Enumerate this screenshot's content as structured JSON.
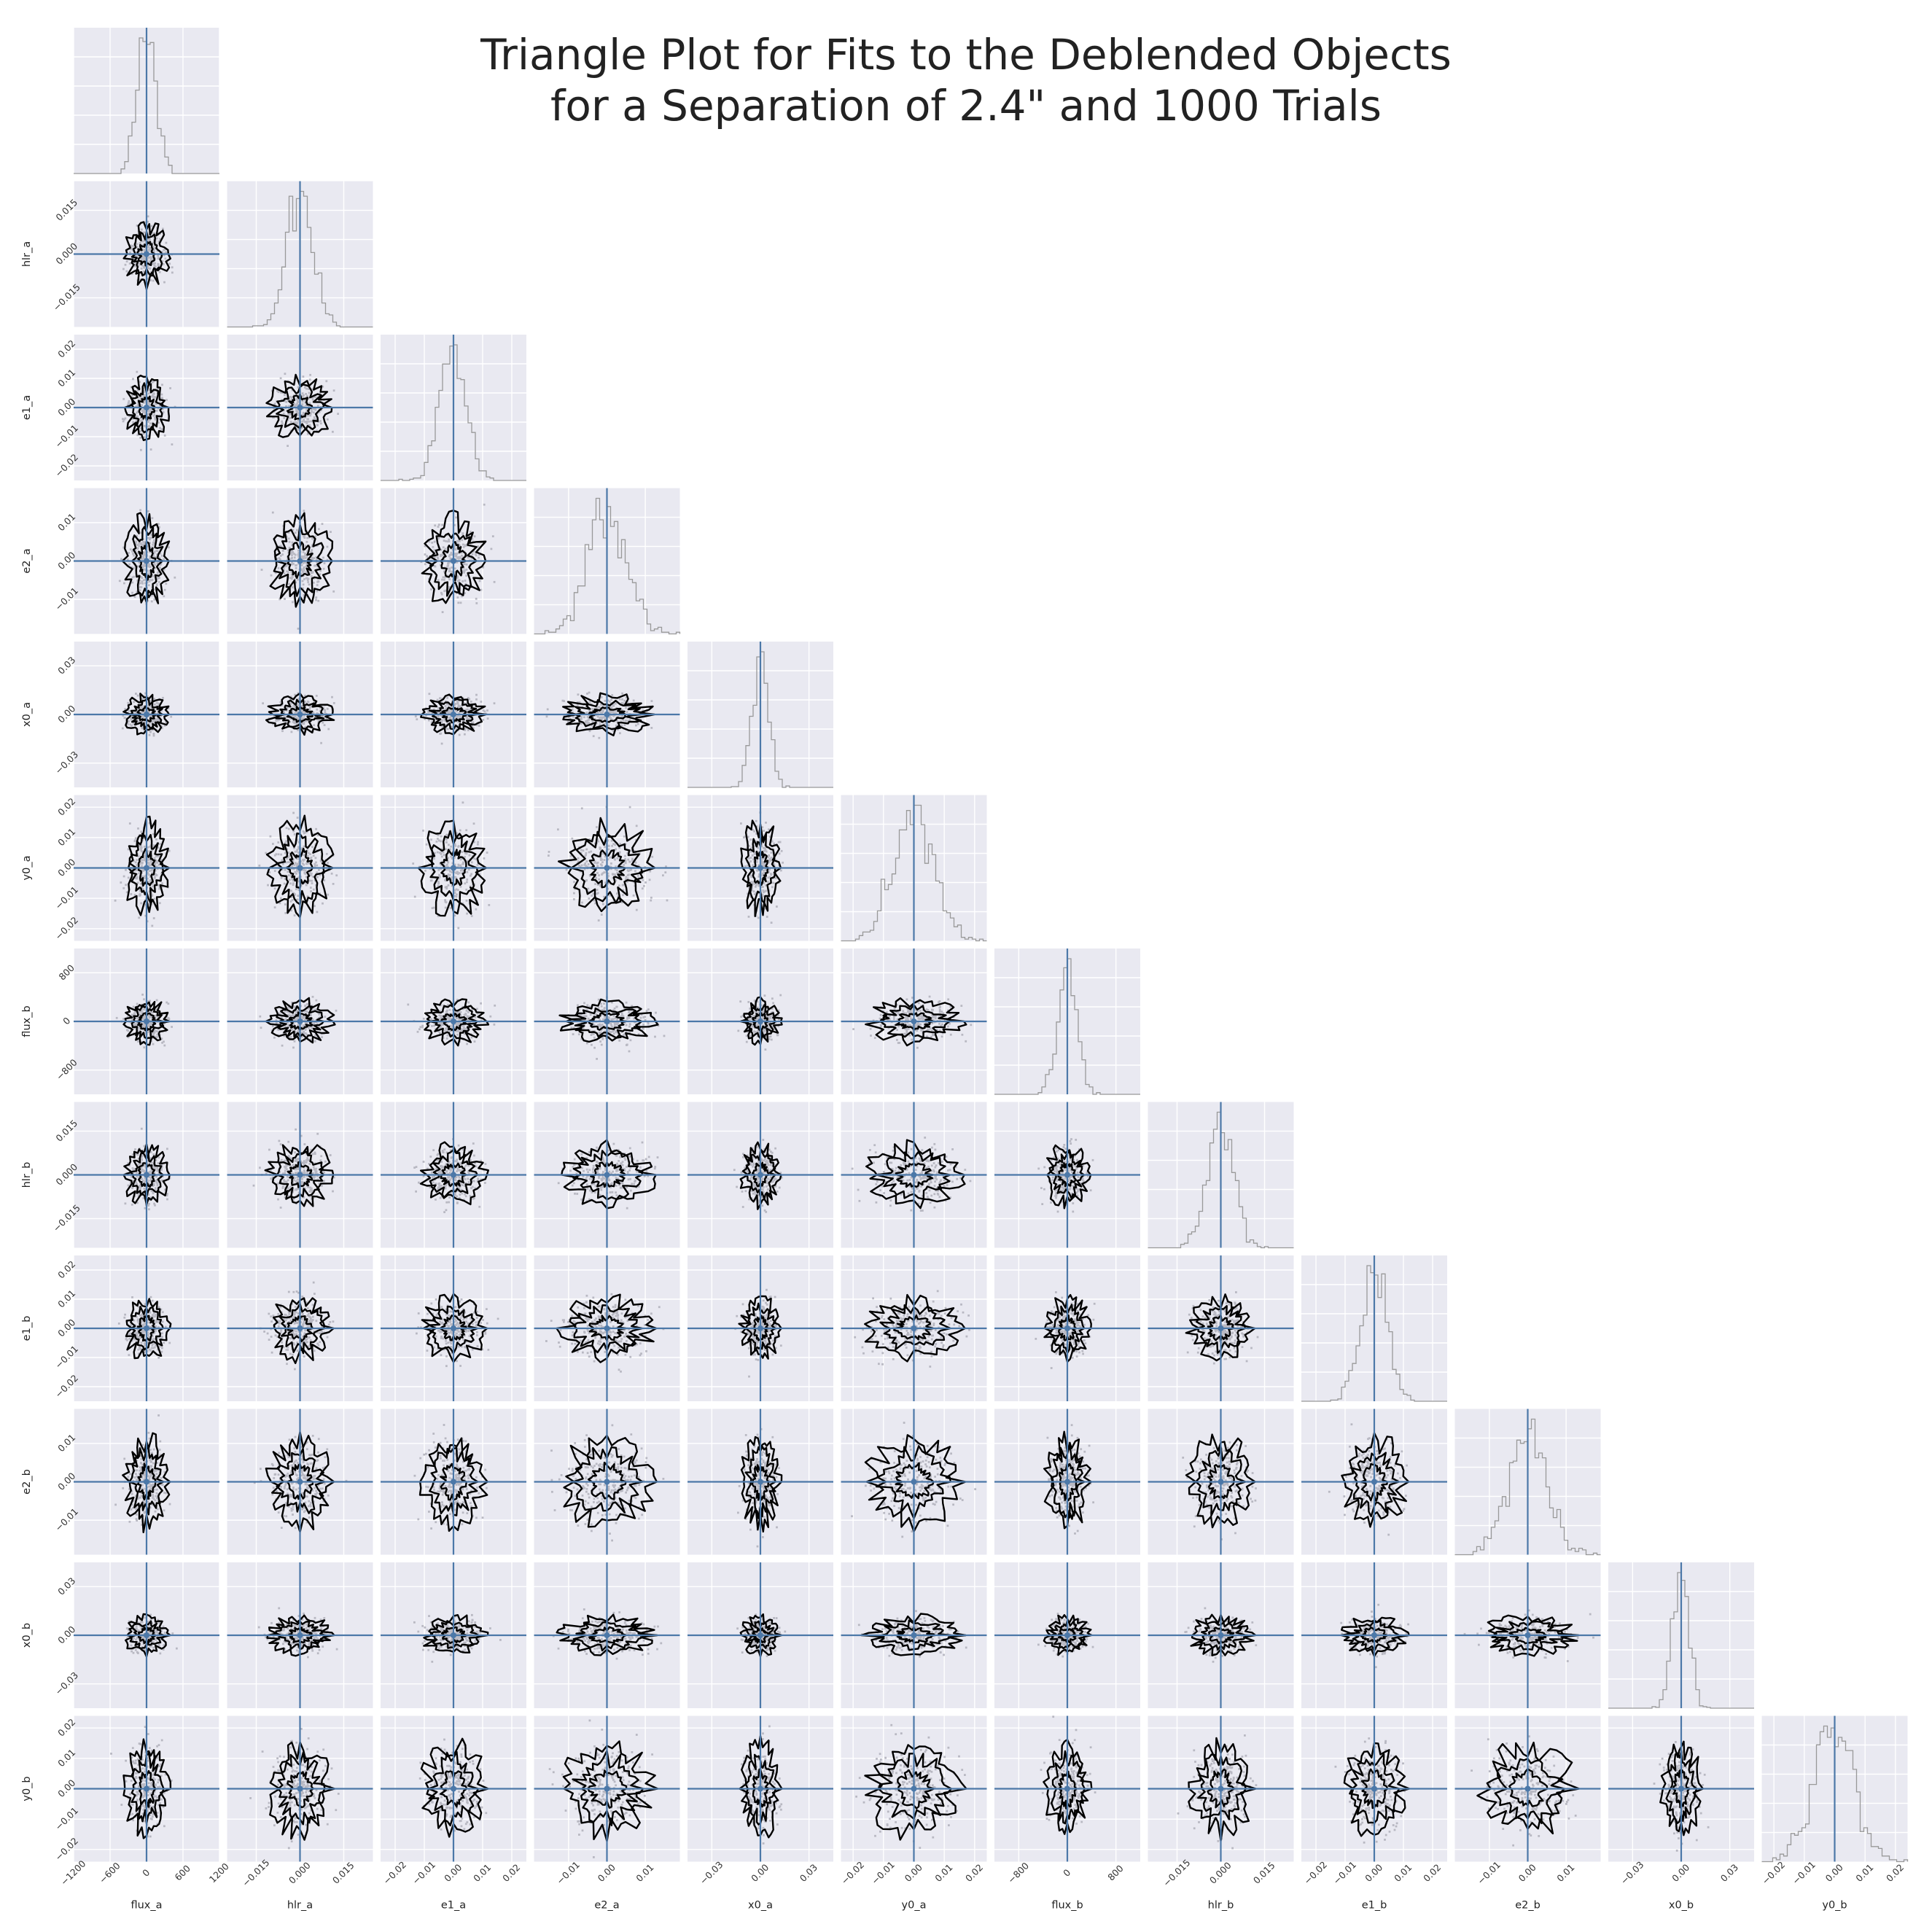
{
  "title": "Triangle Plot for Fits to the Deblended Objects\nfor a Separation of 2.4\" and 1000 Trials",
  "colors": {
    "panel_bg": "#e9e9f1",
    "grid": "#ffffff",
    "truth_line": "#4c78a8",
    "contour": "#000000",
    "scatter_points": "#b8b8c2",
    "histogram": "#999999"
  },
  "chart_data": {
    "type": "corner",
    "trials": 1000,
    "separation_arcsec": 2.4,
    "parameters": [
      {
        "name": "flux_a",
        "label": "flux_a",
        "truth": 0,
        "range": [
          -1200,
          1200
        ],
        "ticks": [
          -1200,
          -600,
          0,
          600,
          1200
        ],
        "tick_labels": [
          "−1200",
          "−600",
          "0",
          "600",
          "1200"
        ],
        "sigma": 150
      },
      {
        "name": "hlr_a",
        "label": "hlr_a",
        "truth": 0,
        "range": [
          -0.025,
          0.025
        ],
        "ticks": [
          -0.015,
          0.0,
          0.015
        ],
        "tick_labels": [
          "−0.015",
          "0.000",
          "0.015"
        ],
        "sigma": 0.0045
      },
      {
        "name": "e1_a",
        "label": "e1_a",
        "truth": 0,
        "range": [
          -0.025,
          0.025
        ],
        "ticks": [
          -0.02,
          -0.01,
          0.0,
          0.01,
          0.02
        ],
        "tick_labels": [
          "−0.02",
          "−0.01",
          "0.00",
          "0.01",
          "0.02"
        ],
        "sigma": 0.0045
      },
      {
        "name": "e2_a",
        "label": "e2_a",
        "truth": 0,
        "range": [
          -0.019,
          0.019
        ],
        "ticks": [
          -0.01,
          0.0,
          0.01
        ],
        "tick_labels": [
          "−0.01",
          "0.00",
          "0.01"
        ],
        "sigma": 0.005
      },
      {
        "name": "x0_a",
        "label": "x0_a",
        "truth": 0,
        "range": [
          -0.045,
          0.045
        ],
        "ticks": [
          -0.03,
          0.0,
          0.03
        ],
        "tick_labels": [
          "−0.03",
          "0.00",
          "0.03"
        ],
        "sigma": 0.005
      },
      {
        "name": "y0_a",
        "label": "y0_a",
        "truth": 0,
        "range": [
          -0.024,
          0.024
        ],
        "ticks": [
          -0.02,
          -0.01,
          0.0,
          0.01,
          0.02
        ],
        "tick_labels": [
          "−0.02",
          "−0.01",
          "0.00",
          "0.01",
          "0.02"
        ],
        "sigma": 0.0065
      },
      {
        "name": "flux_b",
        "label": "flux_b",
        "truth": 0,
        "range": [
          -1200,
          1200
        ],
        "ticks": [
          -800,
          0,
          800
        ],
        "tick_labels": [
          "−800",
          "0",
          "800"
        ],
        "sigma": 150
      },
      {
        "name": "hlr_b",
        "label": "hlr_b",
        "truth": 0,
        "range": [
          -0.025,
          0.025
        ],
        "ticks": [
          -0.015,
          0.0,
          0.015
        ],
        "tick_labels": [
          "−0.015",
          "0.000",
          "0.015"
        ],
        "sigma": 0.0045
      },
      {
        "name": "e1_b",
        "label": "e1_b",
        "truth": 0,
        "range": [
          -0.025,
          0.025
        ],
        "ticks": [
          -0.02,
          -0.01,
          0.0,
          0.01,
          0.02
        ],
        "tick_labels": [
          "−0.02",
          "−0.01",
          "0.00",
          "0.01",
          "0.02"
        ],
        "sigma": 0.0045
      },
      {
        "name": "e2_b",
        "label": "e2_b",
        "truth": 0,
        "range": [
          -0.019,
          0.019
        ],
        "ticks": [
          -0.01,
          0.0,
          0.01
        ],
        "tick_labels": [
          "−0.01",
          "0.00",
          "0.01"
        ],
        "sigma": 0.005
      },
      {
        "name": "x0_b",
        "label": "x0_b",
        "truth": 0,
        "range": [
          -0.045,
          0.045
        ],
        "ticks": [
          -0.03,
          0.0,
          0.03
        ],
        "tick_labels": [
          "−0.03",
          "0.00",
          "0.03"
        ],
        "sigma": 0.005
      },
      {
        "name": "y0_b",
        "label": "y0_b",
        "truth": 0,
        "range": [
          -0.024,
          0.024
        ],
        "ticks": [
          -0.02,
          -0.01,
          0.0,
          0.01,
          0.02
        ],
        "tick_labels": [
          "−0.02",
          "−0.01",
          "0.00",
          "0.01",
          "0.02"
        ],
        "sigma": 0.0065
      }
    ],
    "diagonal": "histogram",
    "off_diagonal": "2d-contour-with-scatter",
    "truth_lines": true,
    "grid": true
  }
}
